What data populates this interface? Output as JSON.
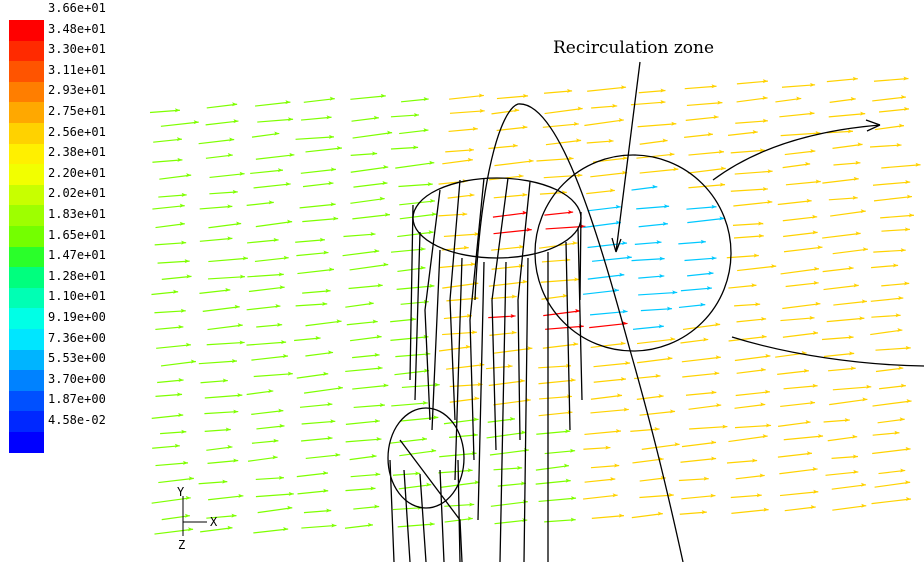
{
  "annotation": "Recirculation zone",
  "axes": {
    "y": "Y",
    "x": "X",
    "z": "Z"
  },
  "legend": {
    "ticks": [
      {
        "label": "3.66e+01",
        "color": "#ff0000"
      },
      {
        "label": "3.48e+01",
        "color": "#ff2a00"
      },
      {
        "label": "3.30e+01",
        "color": "#ff5400"
      },
      {
        "label": "3.11e+01",
        "color": "#ff7e00"
      },
      {
        "label": "2.93e+01",
        "color": "#ffa800"
      },
      {
        "label": "2.75e+01",
        "color": "#ffd200"
      },
      {
        "label": "2.56e+01",
        "color": "#fff000"
      },
      {
        "label": "2.38e+01",
        "color": "#f2ff00"
      },
      {
        "label": "2.20e+01",
        "color": "#c8ff00"
      },
      {
        "label": "2.02e+01",
        "color": "#9eff00"
      },
      {
        "label": "1.83e+01",
        "color": "#74ff00"
      },
      {
        "label": "1.65e+01",
        "color": "#2aff2a"
      },
      {
        "label": "1.47e+01",
        "color": "#00ff7e"
      },
      {
        "label": "1.28e+01",
        "color": "#00ffb4"
      },
      {
        "label": "1.10e+01",
        "color": "#00ffe6"
      },
      {
        "label": "9.19e+00",
        "color": "#00e6ff"
      },
      {
        "label": "7.36e+00",
        "color": "#00b4ff"
      },
      {
        "label": "5.53e+00",
        "color": "#0082ff"
      },
      {
        "label": "3.70e+00",
        "color": "#0050ff"
      },
      {
        "label": "1.87e+00",
        "color": "#0028ff"
      },
      {
        "label": "4.58e-02",
        "color": "#0000ff"
      }
    ]
  },
  "vector_colors": {
    "low": "#00c8ff",
    "mid": "#7eff00",
    "high": "#ffd200",
    "peak": "#ff0000",
    "outline": "#000000"
  }
}
